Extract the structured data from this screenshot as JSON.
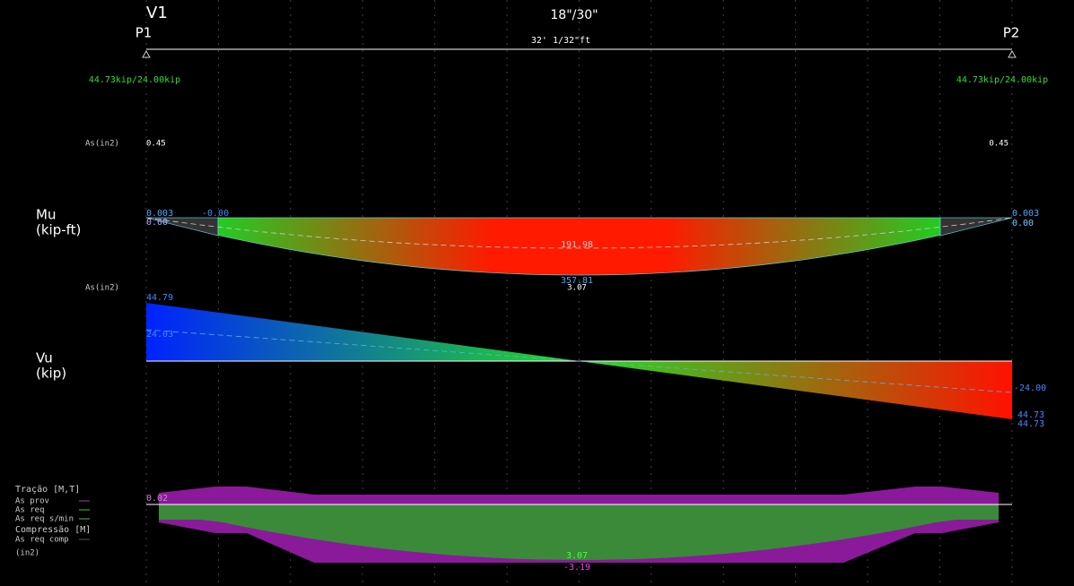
{
  "header": {
    "beam": "V1",
    "section": "18\"/30\"",
    "left_support": "P1",
    "right_support": "P2",
    "span": "32' 1/32\"ft"
  },
  "reactions": {
    "left": "44.73kip/24.00kip",
    "right": "44.73kip/24.00kip"
  },
  "as_top": {
    "label": "As(in2)",
    "left": "0.45",
    "right": "0.45"
  },
  "moment": {
    "title": [
      "Mu",
      "(kip-ft)"
    ],
    "left_top": "0.003",
    "left_neg": "-0.00",
    "left_bottom": "0.00",
    "right_top": "0.003",
    "right_bottom": "0.00",
    "service_max": "191.98",
    "ultimate_max": "357.81",
    "as_max": "3.07",
    "as_label": "As(in2)"
  },
  "shear": {
    "title": [
      "Vu",
      "(kip)"
    ],
    "left_ultimate": "44.79",
    "left_service": "24.03",
    "right_service": "-24.00",
    "right_ultimate": "44.73",
    "right_ultimate_2": "44.73"
  },
  "reinforcement": {
    "legend": {
      "tension_title": "Tração [M,T]",
      "items": [
        "As prov",
        "As req",
        "As req s/min"
      ],
      "compression_title": "Compressão [M]",
      "compression_items": [
        "As req comp"
      ],
      "units": "(in2)"
    },
    "end_value": "0.02",
    "as_req_max": "3.07",
    "as_prov_max": "-3.19"
  }
}
